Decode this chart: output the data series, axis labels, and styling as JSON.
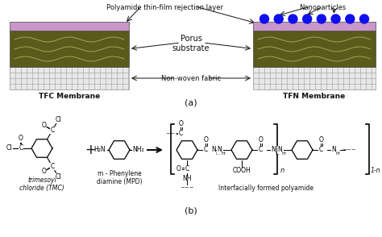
{
  "bg_color": "#ffffff",
  "label_a": "(a)",
  "label_b": "(b)",
  "tfc_label": "TFC Membrane",
  "tfn_label": "TFN Membrane",
  "nonwoven_label": "Non-woven fabric",
  "porus_label": "Porus\nsubstrate",
  "polyamide_label": "Polyamide thin-film rejection layer",
  "nano_label": "Nanoparticles",
  "tmc_label": "trimesoyl\nchloride (TMC)",
  "mpd_label": "m - Phenylene\ndiamine (MPD)",
  "poly_label": "Interfacially formed polyamide",
  "colors": {
    "pink_layer": "#c896c8",
    "olive_layer": "#5a5a1a",
    "grid_bg": "#e8e8e8",
    "grid_line": "#aaaaaa",
    "nanoparticle": "#1010ee",
    "text": "#111111",
    "arrow": "#111111"
  }
}
